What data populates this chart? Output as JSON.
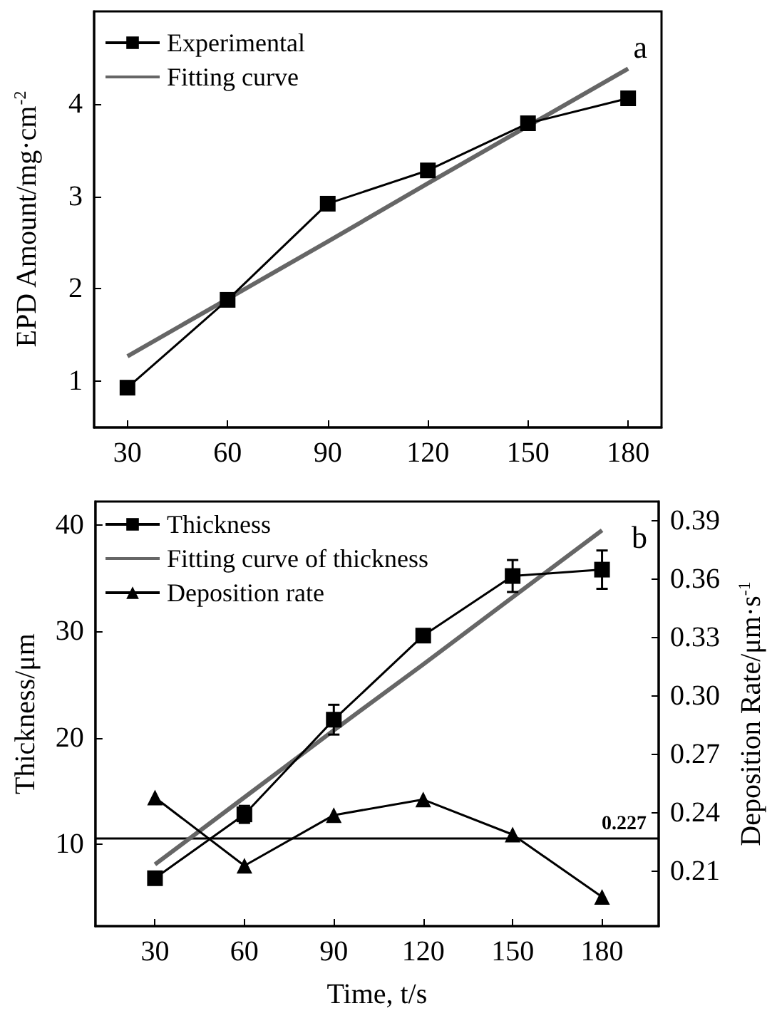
{
  "chart_data": [
    {
      "type": "line",
      "ylabel": "EPD Amount/mg·cm$^{-2}$",
      "x": [
        30,
        60,
        90,
        120,
        150,
        180
      ],
      "xlim": [
        20,
        190
      ],
      "xticks": [
        30,
        60,
        90,
        120,
        150,
        180
      ],
      "ylim": [
        0.5,
        5
      ],
      "yticks": [
        1,
        2,
        3,
        4
      ],
      "legend": "top left",
      "annotations": [
        "a"
      ],
      "series": [
        {
          "name": "Experimental",
          "color": "#000000",
          "marker": "square",
          "values": [
            0.93,
            1.88,
            2.92,
            3.28,
            3.79,
            4.06
          ]
        },
        {
          "name": "Fitting curve",
          "color": "#666666",
          "marker": "none",
          "values": [
            1.27,
            1.89,
            2.51,
            3.14,
            3.76,
            4.38
          ]
        }
      ]
    },
    {
      "type": "line",
      "xlabel": "Time, t/s",
      "ylabel": "Thickness/μm",
      "y2label": "Deposition Rate/μm·s$^{-1}$",
      "x": [
        30,
        60,
        90,
        120,
        150,
        180
      ],
      "xlim": [
        10,
        199
      ],
      "xticks": [
        30,
        60,
        90,
        120,
        150,
        180
      ],
      "ylim": [
        2.3,
        42.2
      ],
      "yticks": [
        10,
        20,
        30,
        40
      ],
      "y2lim": [
        0.182,
        0.4
      ],
      "y2ticks": [
        {
          "value": 0.21,
          "label": "0.21"
        },
        {
          "value": 0.24,
          "label": "0.24"
        },
        {
          "value": 0.27,
          "label": "0.27"
        },
        {
          "value": 0.3,
          "label": "0.30"
        },
        {
          "value": 0.33,
          "label": "0.33"
        },
        {
          "value": 0.36,
          "label": "0.36"
        },
        {
          "value": 0.39,
          "label": "0.39"
        }
      ],
      "legend": "top left",
      "annotations": [
        "b"
      ],
      "ref_lines": [
        {
          "axis": "y2",
          "value": 0.227,
          "label": "0.227"
        }
      ],
      "series": [
        {
          "name": "Thickness",
          "color": "#000000",
          "marker": "square",
          "values": [
            6.8,
            12.8,
            21.7,
            29.6,
            35.2,
            35.8
          ],
          "errors": [
            null,
            0.8,
            1.4,
            0.5,
            1.5,
            1.8
          ]
        },
        {
          "name": "Fitting curve of thickness",
          "color": "#666666",
          "marker": "none",
          "values": [
            8.1,
            14.4,
            20.7,
            26.9,
            33.2,
            39.5
          ]
        },
        {
          "name": "Deposition rate",
          "axis": "y2",
          "color": "#000000",
          "marker": "triangle",
          "values": [
            0.248,
            0.213,
            0.239,
            0.247,
            0.229,
            0.197
          ]
        }
      ]
    }
  ]
}
